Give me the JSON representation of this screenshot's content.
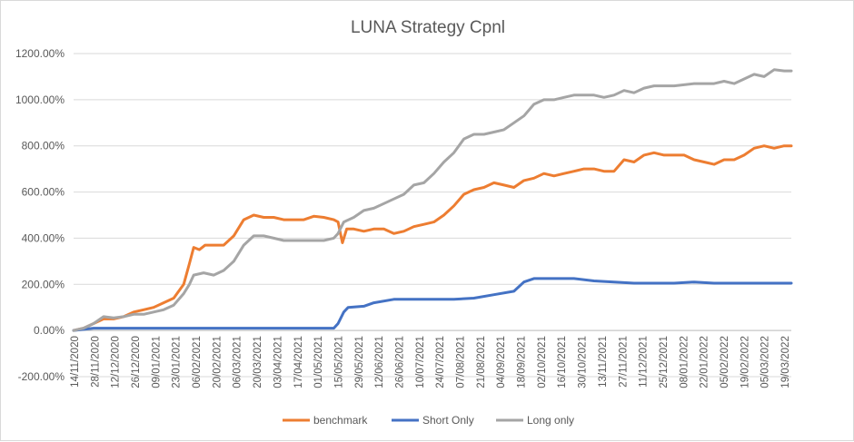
{
  "chart_data": {
    "type": "line",
    "title": "LUNA Strategy Cpnl",
    "xlabel": "",
    "ylabel": "",
    "ylim": [
      -2.0,
      12.0
    ],
    "y_tick_values": [
      -2.0,
      0.0,
      2.0,
      4.0,
      6.0,
      8.0,
      10.0,
      12.0
    ],
    "y_tick_labels": [
      "-200.00%",
      "0.00%",
      "200.00%",
      "400.00%",
      "600.00%",
      "800.00%",
      "1000.00%",
      "1200.00%"
    ],
    "x_tick_labels": [
      "14/11/2020",
      "28/11/2020",
      "12/12/2020",
      "26/12/2020",
      "09/01/2021",
      "23/01/2021",
      "06/02/2021",
      "20/02/2021",
      "06/03/2021",
      "20/03/2021",
      "03/04/2021",
      "17/04/2021",
      "01/05/2021",
      "15/05/2021",
      "29/05/2021",
      "12/06/2021",
      "26/06/2021",
      "10/07/2021",
      "24/07/2021",
      "07/08/2021",
      "21/08/2021",
      "04/09/2021",
      "18/09/2021",
      "02/10/2021",
      "16/10/2021",
      "30/10/2021",
      "13/11/2021",
      "27/11/2021",
      "11/12/2021",
      "25/12/2021",
      "08/01/2022",
      "22/01/2022",
      "05/02/2022",
      "19/02/2022",
      "05/03/2022",
      "19/03/2022"
    ],
    "x_start": "2020-11-14",
    "x_end": "2022-03-31",
    "grid": true,
    "legend_position": "bottom",
    "series": [
      {
        "name": "benchmark",
        "color": "#ED7D31",
        "points": [
          [
            "2020-11-14",
            0.0
          ],
          [
            "2020-11-21",
            0.1
          ],
          [
            "2020-11-28",
            0.3
          ],
          [
            "2020-12-05",
            0.5
          ],
          [
            "2020-12-12",
            0.5
          ],
          [
            "2020-12-19",
            0.6
          ],
          [
            "2020-12-26",
            0.8
          ],
          [
            "2021-01-02",
            0.9
          ],
          [
            "2021-01-09",
            1.0
          ],
          [
            "2021-01-16",
            1.2
          ],
          [
            "2021-01-23",
            1.4
          ],
          [
            "2021-01-30",
            2.0
          ],
          [
            "2021-02-03",
            2.9
          ],
          [
            "2021-02-06",
            3.6
          ],
          [
            "2021-02-10",
            3.5
          ],
          [
            "2021-02-14",
            3.7
          ],
          [
            "2021-02-20",
            3.7
          ],
          [
            "2021-02-27",
            3.7
          ],
          [
            "2021-03-06",
            4.1
          ],
          [
            "2021-03-13",
            4.8
          ],
          [
            "2021-03-20",
            5.0
          ],
          [
            "2021-03-27",
            4.9
          ],
          [
            "2021-04-03",
            4.9
          ],
          [
            "2021-04-10",
            4.8
          ],
          [
            "2021-04-17",
            4.8
          ],
          [
            "2021-04-24",
            4.8
          ],
          [
            "2021-05-01",
            4.95
          ],
          [
            "2021-05-08",
            4.9
          ],
          [
            "2021-05-15",
            4.8
          ],
          [
            "2021-05-18",
            4.7
          ],
          [
            "2021-05-21",
            3.8
          ],
          [
            "2021-05-24",
            4.4
          ],
          [
            "2021-05-29",
            4.4
          ],
          [
            "2021-06-05",
            4.3
          ],
          [
            "2021-06-12",
            4.4
          ],
          [
            "2021-06-19",
            4.4
          ],
          [
            "2021-06-26",
            4.2
          ],
          [
            "2021-07-03",
            4.3
          ],
          [
            "2021-07-10",
            4.5
          ],
          [
            "2021-07-17",
            4.6
          ],
          [
            "2021-07-24",
            4.7
          ],
          [
            "2021-07-31",
            5.0
          ],
          [
            "2021-08-07",
            5.4
          ],
          [
            "2021-08-14",
            5.9
          ],
          [
            "2021-08-21",
            6.1
          ],
          [
            "2021-08-28",
            6.2
          ],
          [
            "2021-09-04",
            6.4
          ],
          [
            "2021-09-11",
            6.3
          ],
          [
            "2021-09-18",
            6.2
          ],
          [
            "2021-09-25",
            6.5
          ],
          [
            "2021-10-02",
            6.6
          ],
          [
            "2021-10-09",
            6.8
          ],
          [
            "2021-10-16",
            6.7
          ],
          [
            "2021-10-23",
            6.8
          ],
          [
            "2021-10-30",
            6.9
          ],
          [
            "2021-11-06",
            7.0
          ],
          [
            "2021-11-13",
            7.0
          ],
          [
            "2021-11-20",
            6.9
          ],
          [
            "2021-11-27",
            6.9
          ],
          [
            "2021-12-04",
            7.4
          ],
          [
            "2021-12-11",
            7.3
          ],
          [
            "2021-12-18",
            7.6
          ],
          [
            "2021-12-25",
            7.7
          ],
          [
            "2022-01-01",
            7.6
          ],
          [
            "2022-01-08",
            7.6
          ],
          [
            "2022-01-15",
            7.6
          ],
          [
            "2022-01-22",
            7.4
          ],
          [
            "2022-01-29",
            7.3
          ],
          [
            "2022-02-05",
            7.2
          ],
          [
            "2022-02-12",
            7.4
          ],
          [
            "2022-02-19",
            7.4
          ],
          [
            "2022-02-26",
            7.6
          ],
          [
            "2022-03-05",
            7.9
          ],
          [
            "2022-03-12",
            8.0
          ],
          [
            "2022-03-19",
            7.9
          ],
          [
            "2022-03-26",
            8.0
          ],
          [
            "2022-03-31",
            8.0
          ]
        ]
      },
      {
        "name": "Short Only",
        "color": "#4472C4",
        "points": [
          [
            "2020-11-14",
            0.0
          ],
          [
            "2020-11-21",
            0.05
          ],
          [
            "2020-11-28",
            0.1
          ],
          [
            "2021-05-15",
            0.1
          ],
          [
            "2021-05-18",
            0.3
          ],
          [
            "2021-05-22",
            0.8
          ],
          [
            "2021-05-25",
            1.0
          ],
          [
            "2021-06-05",
            1.05
          ],
          [
            "2021-06-12",
            1.2
          ],
          [
            "2021-06-26",
            1.35
          ],
          [
            "2021-08-07",
            1.35
          ],
          [
            "2021-08-21",
            1.4
          ],
          [
            "2021-09-04",
            1.55
          ],
          [
            "2021-09-18",
            1.7
          ],
          [
            "2021-09-25",
            2.1
          ],
          [
            "2021-10-02",
            2.25
          ],
          [
            "2021-10-30",
            2.25
          ],
          [
            "2021-11-13",
            2.15
          ],
          [
            "2021-11-27",
            2.1
          ],
          [
            "2021-12-11",
            2.05
          ],
          [
            "2022-01-08",
            2.05
          ],
          [
            "2022-01-22",
            2.1
          ],
          [
            "2022-02-05",
            2.05
          ],
          [
            "2022-03-31",
            2.05
          ]
        ]
      },
      {
        "name": "Long only",
        "color": "#A5A5A5",
        "points": [
          [
            "2020-11-14",
            0.0
          ],
          [
            "2020-11-21",
            0.1
          ],
          [
            "2020-11-28",
            0.3
          ],
          [
            "2020-12-05",
            0.6
          ],
          [
            "2020-12-12",
            0.55
          ],
          [
            "2020-12-19",
            0.6
          ],
          [
            "2020-12-26",
            0.7
          ],
          [
            "2021-01-02",
            0.7
          ],
          [
            "2021-01-09",
            0.8
          ],
          [
            "2021-01-16",
            0.9
          ],
          [
            "2021-01-23",
            1.1
          ],
          [
            "2021-01-30",
            1.6
          ],
          [
            "2021-02-03",
            2.0
          ],
          [
            "2021-02-06",
            2.4
          ],
          [
            "2021-02-13",
            2.5
          ],
          [
            "2021-02-20",
            2.4
          ],
          [
            "2021-02-27",
            2.6
          ],
          [
            "2021-03-06",
            3.0
          ],
          [
            "2021-03-13",
            3.7
          ],
          [
            "2021-03-20",
            4.1
          ],
          [
            "2021-03-27",
            4.1
          ],
          [
            "2021-04-03",
            4.0
          ],
          [
            "2021-04-10",
            3.9
          ],
          [
            "2021-04-17",
            3.9
          ],
          [
            "2021-04-24",
            3.9
          ],
          [
            "2021-05-01",
            3.9
          ],
          [
            "2021-05-08",
            3.9
          ],
          [
            "2021-05-15",
            4.0
          ],
          [
            "2021-05-18",
            4.2
          ],
          [
            "2021-05-22",
            4.7
          ],
          [
            "2021-05-29",
            4.9
          ],
          [
            "2021-06-05",
            5.2
          ],
          [
            "2021-06-12",
            5.3
          ],
          [
            "2021-06-19",
            5.5
          ],
          [
            "2021-06-26",
            5.7
          ],
          [
            "2021-07-03",
            5.9
          ],
          [
            "2021-07-10",
            6.3
          ],
          [
            "2021-07-17",
            6.4
          ],
          [
            "2021-07-24",
            6.8
          ],
          [
            "2021-07-31",
            7.3
          ],
          [
            "2021-08-07",
            7.7
          ],
          [
            "2021-08-14",
            8.3
          ],
          [
            "2021-08-21",
            8.5
          ],
          [
            "2021-08-28",
            8.5
          ],
          [
            "2021-09-04",
            8.6
          ],
          [
            "2021-09-11",
            8.7
          ],
          [
            "2021-09-18",
            9.0
          ],
          [
            "2021-09-25",
            9.3
          ],
          [
            "2021-10-02",
            9.8
          ],
          [
            "2021-10-09",
            10.0
          ],
          [
            "2021-10-16",
            10.0
          ],
          [
            "2021-10-23",
            10.1
          ],
          [
            "2021-10-30",
            10.2
          ],
          [
            "2021-11-06",
            10.2
          ],
          [
            "2021-11-13",
            10.2
          ],
          [
            "2021-11-20",
            10.1
          ],
          [
            "2021-11-27",
            10.2
          ],
          [
            "2021-12-04",
            10.4
          ],
          [
            "2021-12-11",
            10.3
          ],
          [
            "2021-12-18",
            10.5
          ],
          [
            "2021-12-25",
            10.6
          ],
          [
            "2022-01-01",
            10.6
          ],
          [
            "2022-01-08",
            10.6
          ],
          [
            "2022-01-22",
            10.7
          ],
          [
            "2022-02-05",
            10.7
          ],
          [
            "2022-02-12",
            10.8
          ],
          [
            "2022-02-19",
            10.7
          ],
          [
            "2022-02-26",
            10.9
          ],
          [
            "2022-03-05",
            11.1
          ],
          [
            "2022-03-12",
            11.0
          ],
          [
            "2022-03-19",
            11.3
          ],
          [
            "2022-03-26",
            11.25
          ],
          [
            "2022-03-31",
            11.25
          ]
        ]
      }
    ]
  }
}
